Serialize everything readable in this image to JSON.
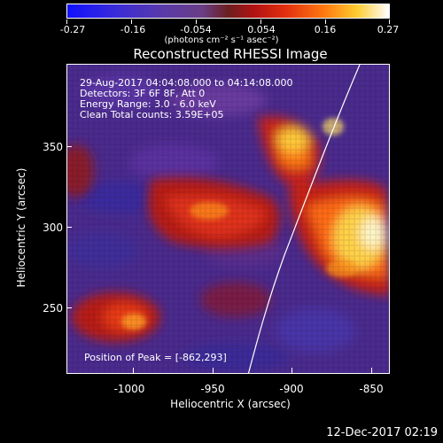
{
  "colorbar": {
    "tick_labels": [
      "-0.27",
      "-0.16",
      "-0.054",
      "0.054",
      "0.16",
      "0.27"
    ],
    "units": "(photons cm⁻² s⁻¹ asec⁻²)"
  },
  "title": "Reconstructed RHESSI Image",
  "annotations": {
    "line1": "29-Aug-2017 04:04:08.000 to 04:14:08.000",
    "line2": "Detectors: 3F 6F 8F, Att 0",
    "line3": "Energy Range: 3.0 - 6.0 keV",
    "line4": "Clean    Total counts: 3.59E+05",
    "peak": "Position of Peak = [-862,293]"
  },
  "axes": {
    "ylabel": "Heliocentric Y (arcsec)",
    "xlabel": "Heliocentric X (arcsec)",
    "yticks": [
      "350",
      "300",
      "250"
    ],
    "xticks": [
      "-1000",
      "-950",
      "-900",
      "-850"
    ]
  },
  "timestamp": "12-Dec-2017 02:19"
}
